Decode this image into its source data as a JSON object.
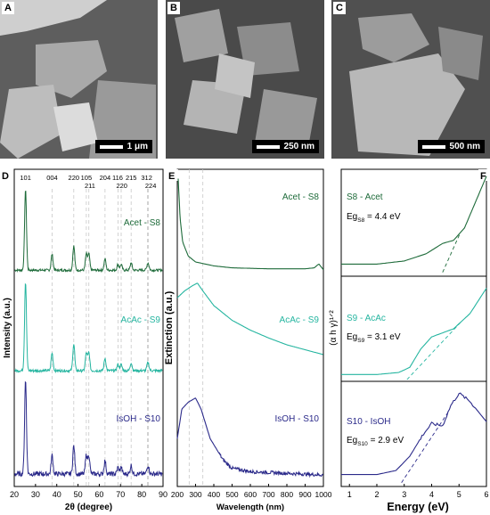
{
  "sem": [
    {
      "letter": "A",
      "scale": "1 μm"
    },
    {
      "letter": "B",
      "scale": "250 nm"
    },
    {
      "letter": "C",
      "scale": "500 nm"
    }
  ],
  "panelD": {
    "letter": "D",
    "xlabel": "2θ (degree)",
    "ylabel": "Intensity (a.u.)",
    "peaks": [
      "101",
      "004",
      "220",
      "105",
      "211",
      "204",
      "116",
      "220",
      "215",
      "312",
      "224"
    ],
    "samples": [
      "Acet - S8",
      "AcAc - S9",
      "IsOH - S10"
    ]
  },
  "panelE": {
    "letter": "E",
    "xlabel": "Wavelength (nm)",
    "ylabel": "Extinction (a.u.)",
    "samples": [
      "Acet - S8",
      "AcAc - S9",
      "IsOH - S10"
    ]
  },
  "panelF": {
    "letter": "F",
    "xlabel": "Energy (eV)",
    "ylabel": "(α h γ)¹ᐟ²",
    "labels": [
      {
        "sample": "S8 - Acet",
        "eg_prefix": "Eg",
        "eg_sub": "S8",
        "eg_value": "= 4.4 eV"
      },
      {
        "sample": "S9 - AcAc",
        "eg_prefix": "Eg",
        "eg_sub": "S9",
        "eg_value": "= 3.1 eV"
      },
      {
        "sample": "S10 - IsOH",
        "eg_prefix": "Eg",
        "eg_sub": "S10",
        "eg_value": "= 2.9 eV"
      }
    ]
  },
  "chart_data": [
    {
      "type": "line",
      "title": "",
      "xlabel": "2θ (degree)",
      "ylabel": "Intensity (a.u.)",
      "xlim": [
        20,
        90
      ],
      "xticks": [
        20,
        30,
        40,
        50,
        60,
        70,
        80,
        90
      ],
      "peak_positions": [
        25.3,
        37.8,
        48.0,
        53.9,
        55.1,
        62.7,
        68.8,
        70.3,
        75.0,
        82.7,
        83.1
      ],
      "peak_relative_heights": [
        1.0,
        0.2,
        0.3,
        0.2,
        0.2,
        0.14,
        0.07,
        0.07,
        0.09,
        0.05,
        0.05
      ],
      "series": [
        {
          "name": "Acet - S8",
          "color": "#1e6b3a"
        },
        {
          "name": "AcAc - S9",
          "color": "#25b5a0"
        },
        {
          "name": "IsOH - S10",
          "color": "#2b2a8a"
        }
      ]
    },
    {
      "type": "line",
      "title": "",
      "xlabel": "Wavelength (nm)",
      "ylabel": "Extinction (a.u.)",
      "xlim": [
        200,
        1000
      ],
      "xticks": [
        200,
        300,
        400,
        500,
        600,
        700,
        800,
        900,
        1000
      ],
      "series": [
        {
          "name": "Acet - S8",
          "color": "#1e6b3a",
          "x": [
            205,
            215,
            230,
            260,
            300,
            400,
            500,
            700,
            900,
            950,
            975,
            1000
          ],
          "y": [
            0.95,
            0.55,
            0.3,
            0.16,
            0.1,
            0.06,
            0.04,
            0.03,
            0.03,
            0.04,
            0.08,
            0.02
          ]
        },
        {
          "name": "AcAc - S9",
          "color": "#25b5a0",
          "x": [
            200,
            240,
            280,
            310,
            340,
            400,
            500,
            600,
            700,
            800,
            900,
            1000
          ],
          "y": [
            0.78,
            0.85,
            0.9,
            0.93,
            0.85,
            0.7,
            0.55,
            0.45,
            0.37,
            0.3,
            0.25,
            0.2
          ]
        },
        {
          "name": "IsOH - S10",
          "color": "#2b2a8a",
          "x": [
            200,
            225,
            260,
            300,
            330,
            380,
            450,
            500,
            600,
            700,
            800,
            900,
            1000
          ],
          "y": [
            0.45,
            0.8,
            0.88,
            0.93,
            0.8,
            0.45,
            0.2,
            0.1,
            0.06,
            0.05,
            0.04,
            0.03,
            0.02
          ]
        }
      ]
    },
    {
      "type": "line",
      "title": "",
      "xlabel": "Energy (eV)",
      "ylabel": "(α h γ)¹ᐟ²",
      "xlim": [
        0.7,
        6
      ],
      "xticks": [
        1,
        2,
        3,
        4,
        5,
        6
      ],
      "series": [
        {
          "name": "S8 - Acet",
          "color": "#1e6b3a",
          "band_gap_eV": 4.4,
          "x": [
            0.7,
            2,
            3,
            3.8,
            4.4,
            4.8,
            5.2,
            5.6,
            6.0
          ],
          "y": [
            0.1,
            0.1,
            0.13,
            0.2,
            0.3,
            0.33,
            0.45,
            0.7,
            0.95
          ]
        },
        {
          "name": "S9 - AcAc",
          "color": "#25b5a0",
          "band_gap_eV": 3.1,
          "x": [
            0.7,
            2,
            2.8,
            3.2,
            3.6,
            4.0,
            4.8,
            5.4,
            6.0
          ],
          "y": [
            0.05,
            0.05,
            0.07,
            0.12,
            0.3,
            0.42,
            0.5,
            0.65,
            0.9
          ]
        },
        {
          "name": "S10 - IsOH",
          "color": "#2b2a8a",
          "band_gap_eV": 2.9,
          "x": [
            0.7,
            2,
            2.7,
            3.2,
            3.7,
            4.0,
            4.4,
            4.7,
            5.0,
            5.4,
            6.0
          ],
          "y": [
            0.1,
            0.1,
            0.14,
            0.28,
            0.5,
            0.6,
            0.58,
            0.78,
            0.9,
            0.82,
            0.62
          ]
        }
      ]
    }
  ]
}
